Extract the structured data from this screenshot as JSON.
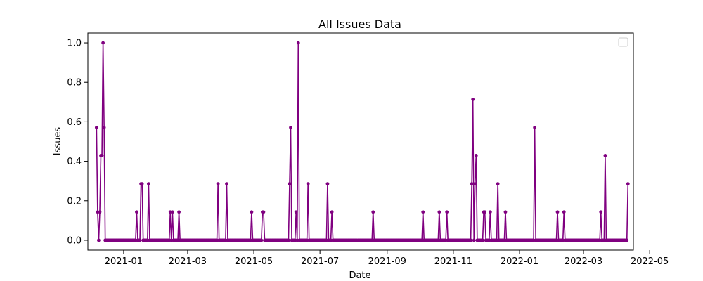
{
  "chart_data": {
    "type": "line",
    "title": "All Issues Data",
    "xlabel": "Date",
    "ylabel": "Issues",
    "xlim": [
      "2020-11-29",
      "2022-04-16"
    ],
    "ylim": [
      -0.05,
      1.05
    ],
    "grid": false,
    "legend": "top-right",
    "color": "#800080",
    "xticks": [
      "2021-01",
      "2021-03",
      "2021-05",
      "2021-07",
      "2021-09",
      "2021-11",
      "2022-01",
      "2022-03",
      "2022-05"
    ],
    "xtick_dates": [
      "2021-01-01",
      "2021-03-01",
      "2021-05-01",
      "2021-07-01",
      "2021-09-01",
      "2021-11-01",
      "2022-01-01",
      "2022-03-01",
      "2022-05-01"
    ],
    "yticks": [
      "0.0",
      "0.2",
      "0.4",
      "0.6",
      "0.8",
      "1.0"
    ],
    "ytick_values": [
      0,
      0.2,
      0.4,
      0.6,
      0.8,
      1.0
    ],
    "series": [
      {
        "dates_start": "2020-12-07",
        "dates_end": "2022-04-11",
        "nonzero": [
          [
            "2020-12-07",
            0.571
          ],
          [
            "2020-12-08",
            0.143
          ],
          [
            "2020-12-10",
            0.143
          ],
          [
            "2020-12-11",
            0.429
          ],
          [
            "2020-12-12",
            0.429
          ],
          [
            "2020-12-13",
            1.0
          ],
          [
            "2020-12-14",
            0.571
          ],
          [
            "2021-01-13",
            0.143
          ],
          [
            "2021-01-17",
            0.286
          ],
          [
            "2021-01-18",
            0.286
          ],
          [
            "2021-01-24",
            0.286
          ],
          [
            "2021-02-13",
            0.143
          ],
          [
            "2021-02-15",
            0.143
          ],
          [
            "2021-02-21",
            0.143
          ],
          [
            "2021-03-29",
            0.286
          ],
          [
            "2021-04-06",
            0.286
          ],
          [
            "2021-04-29",
            0.143
          ],
          [
            "2021-05-09",
            0.143
          ],
          [
            "2021-05-10",
            0.143
          ],
          [
            "2021-06-03",
            0.286
          ],
          [
            "2021-06-04",
            0.571
          ],
          [
            "2021-06-09",
            0.143
          ],
          [
            "2021-06-11",
            1.0
          ],
          [
            "2021-06-20",
            0.286
          ],
          [
            "2021-07-08",
            0.286
          ],
          [
            "2021-07-12",
            0.143
          ],
          [
            "2021-08-19",
            0.143
          ],
          [
            "2021-10-04",
            0.143
          ],
          [
            "2021-10-19",
            0.143
          ],
          [
            "2021-10-26",
            0.143
          ],
          [
            "2021-11-18",
            0.286
          ],
          [
            "2021-11-19",
            0.714
          ],
          [
            "2021-11-21",
            0.286
          ],
          [
            "2021-11-22",
            0.429
          ],
          [
            "2021-11-29",
            0.143
          ],
          [
            "2021-11-30",
            0.143
          ],
          [
            "2021-12-05",
            0.143
          ],
          [
            "2021-12-12",
            0.286
          ],
          [
            "2021-12-19",
            0.143
          ],
          [
            "2022-01-15",
            0.571
          ],
          [
            "2022-02-05",
            0.143
          ],
          [
            "2022-02-11",
            0.143
          ],
          [
            "2022-03-17",
            0.143
          ],
          [
            "2022-03-21",
            0.429
          ],
          [
            "2022-04-11",
            0.286
          ]
        ]
      }
    ]
  }
}
